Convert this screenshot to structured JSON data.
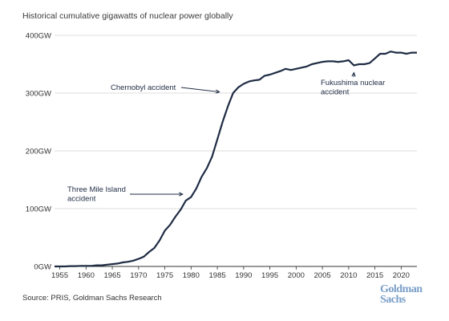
{
  "title": "Historical cumulative gigawatts of nuclear power globally",
  "source": "Source: PRIS, Goldman Sachs Research",
  "logo": {
    "line1": "Goldman",
    "line2": "Sachs"
  },
  "colors": {
    "line": "#1f2c44",
    "grid": "#dcdcdc",
    "axis": "#333333"
  },
  "chart_data": {
    "type": "line",
    "title": "Historical cumulative gigawatts of nuclear power globally",
    "xlabel": "",
    "ylabel": "",
    "xlim": [
      1954,
      2023
    ],
    "ylim": [
      0,
      400
    ],
    "grid": true,
    "xticks": [
      1955,
      1960,
      1965,
      1970,
      1975,
      1980,
      1985,
      1990,
      1995,
      2000,
      2005,
      2010,
      2015,
      2020
    ],
    "yticks": [
      0,
      100,
      200,
      300,
      400
    ],
    "ytick_labels": [
      "0GW",
      "100GW",
      "200GW",
      "300GW",
      "400GW"
    ],
    "series": [
      {
        "x": [
          1954,
          1955,
          1956,
          1957,
          1958,
          1959,
          1960,
          1961,
          1962,
          1963,
          1964,
          1965,
          1966,
          1967,
          1968,
          1969,
          1970,
          1971,
          1972,
          1973,
          1974,
          1975,
          1976,
          1977,
          1978,
          1979,
          1980,
          1981,
          1982,
          1983,
          1984,
          1985,
          1986,
          1987,
          1988,
          1989,
          1990,
          1991,
          1992,
          1993,
          1994,
          1995,
          1996,
          1997,
          1998,
          1999,
          2000,
          2001,
          2002,
          2003,
          2004,
          2005,
          2006,
          2007,
          2008,
          2009,
          2010,
          2011,
          2012,
          2013,
          2014,
          2015,
          2016,
          2017,
          2018,
          2019,
          2020,
          2021,
          2022,
          2023
        ],
        "values": [
          0,
          0,
          0,
          0.5,
          0.5,
          1,
          1,
          1,
          2,
          2,
          3,
          4,
          5,
          7,
          8,
          10,
          13,
          17,
          25,
          32,
          45,
          62,
          72,
          86,
          98,
          114,
          120,
          135,
          155,
          170,
          190,
          220,
          250,
          277,
          300,
          310,
          316,
          320,
          322,
          323,
          330,
          332,
          335,
          338,
          342,
          340,
          342,
          344,
          346,
          350,
          352,
          354,
          355,
          355,
          354,
          355,
          357,
          348,
          350,
          350,
          352,
          360,
          368,
          368,
          372,
          370,
          370,
          368,
          370,
          370
        ]
      }
    ],
    "annotations": [
      {
        "text": [
          "Chernobyl accident"
        ],
        "x": 1986,
        "y": 302
      },
      {
        "text": [
          "Fukushima nuclear",
          "accident"
        ],
        "x": 2011,
        "y": 352
      },
      {
        "text": [
          "Three Mile Island",
          "accident"
        ],
        "x": 1979,
        "y": 125
      }
    ]
  }
}
